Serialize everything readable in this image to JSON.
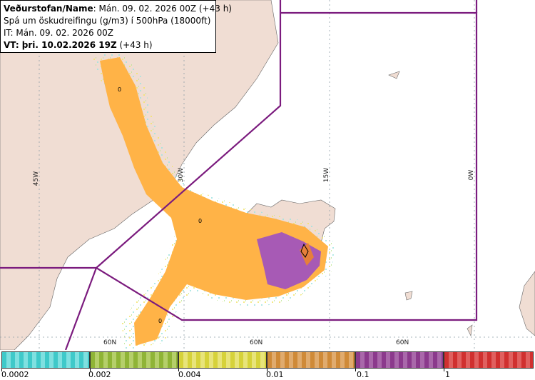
{
  "header": {
    "line1_bold": "Veðurstofan/Name",
    "line1_rest": ": Mán. 09. 02. 2026 00Z (+43 h)",
    "line2": "Spá um öskudreifingu (g/m3) í 500hPa (18000ft)",
    "line3": "IT: Mán. 09. 02. 2026 00Z",
    "line4_bold": "VT: þri. 10.02.2026 19Z",
    "line4_rest": " (+43 h)"
  },
  "map": {
    "longitude_labels": [
      "45W",
      "30W",
      "15W",
      "0W"
    ],
    "latitude_labels": [
      "60N",
      "60N",
      "60N"
    ],
    "contour_labels": [
      "0",
      "0",
      "0"
    ],
    "colors": {
      "land": "#f0ddd3",
      "sea": "#ffffff",
      "grid": "#8fa0a8",
      "boundary": "#7b1b7e",
      "ash_low": "#ffb347",
      "ash_mid": "#f4a33c",
      "ash_high": "#a75ab5",
      "ash_edge_yellow": "#f2e36a",
      "ash_edge_cyan": "#9fe3e0"
    }
  },
  "legend": {
    "tick_labels": [
      "0.0002",
      "0.002",
      "0.004",
      "0.01",
      "0.1",
      "1"
    ],
    "colors": [
      "#3fc9c9",
      "#8fb436",
      "#d6d23a",
      "#cf8a38",
      "#8b3a8c",
      "#d0302f"
    ]
  }
}
